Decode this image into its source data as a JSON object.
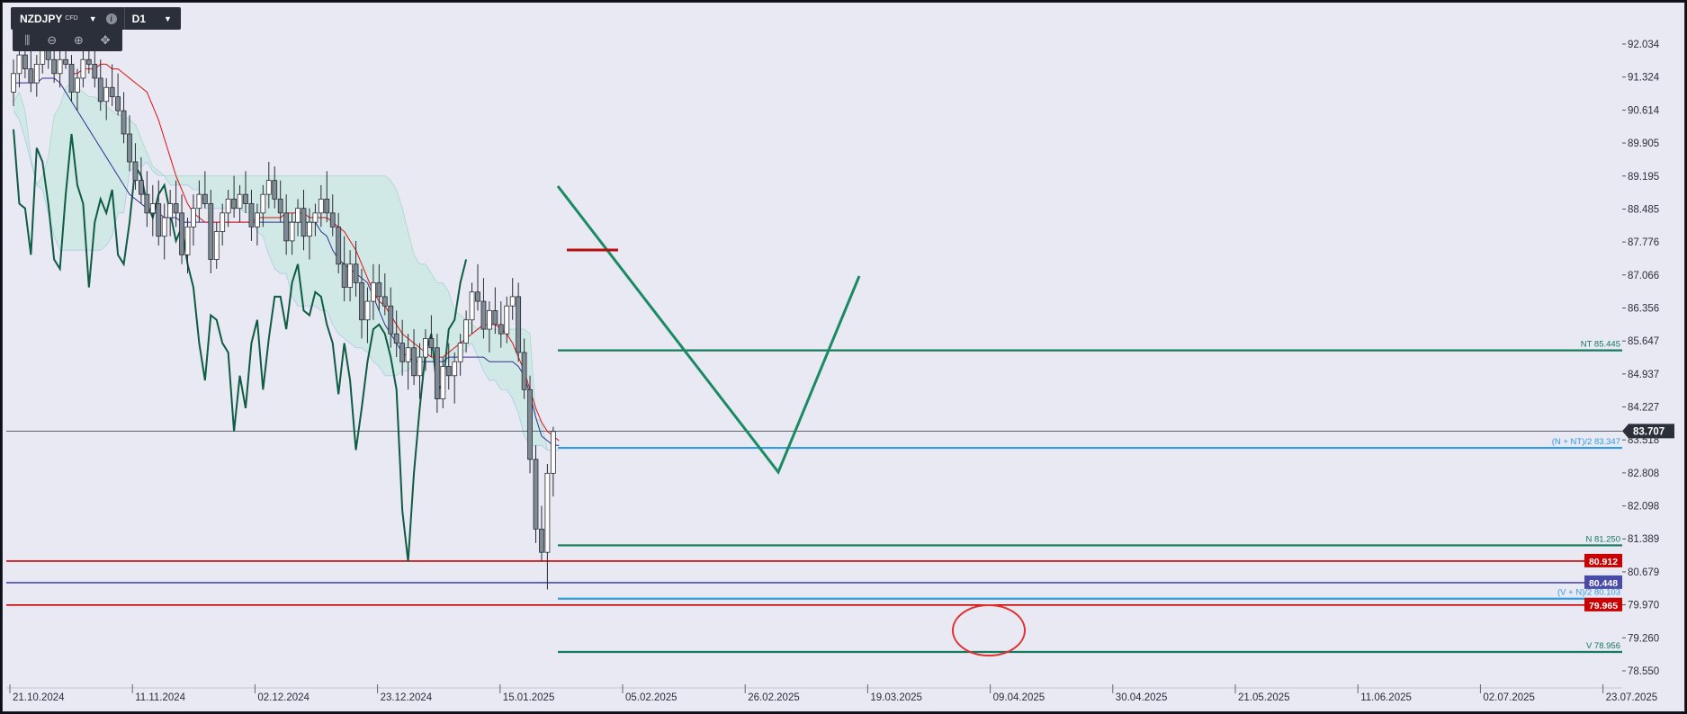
{
  "toolbar": {
    "symbol": "NZDJPY",
    "symbol_type": "CFD",
    "timeframe": "D1",
    "tools": [
      "bars-icon",
      "zoom-out-icon",
      "zoom-in-icon",
      "crosshair-icon"
    ]
  },
  "chart_data": {
    "type": "candlestick",
    "title": "NZDJPY",
    "ylim": [
      78.2,
      92.6
    ],
    "y_ticks": [
      92.034,
      91.324,
      90.614,
      89.905,
      89.195,
      88.485,
      87.776,
      87.066,
      86.356,
      85.647,
      84.937,
      84.227,
      83.518,
      82.808,
      82.098,
      81.389,
      80.679,
      79.97,
      79.26,
      78.55
    ],
    "y_tick_labels": [
      "92.034",
      "91.324",
      "90.614",
      "89.905",
      "89.195",
      "88.485",
      "87.776",
      "87.066",
      "86.356",
      "85.647",
      "84.937",
      "84.227",
      "83.518",
      "82.808",
      "82.098",
      "81.389",
      "80.679",
      "79.970",
      "79.260",
      "78.550"
    ],
    "x_tick_labels": [
      "21.10.2024",
      "11.11.2024",
      "02.12.2024",
      "23.12.2024",
      "15.01.2025",
      "05.02.2025",
      "26.02.2025",
      "19.03.2025",
      "09.04.2025",
      "30.04.2025",
      "21.05.2025",
      "11.06.2025",
      "02.07.2025",
      "23.07.2025"
    ],
    "current_price": "83.707",
    "candles": [
      [
        91.0,
        91.7,
        90.7,
        91.4
      ],
      [
        91.4,
        92.0,
        91.1,
        91.8
      ],
      [
        91.8,
        92.2,
        91.3,
        91.5
      ],
      [
        91.5,
        91.9,
        91.0,
        91.2
      ],
      [
        91.2,
        91.8,
        90.9,
        91.6
      ],
      [
        91.6,
        92.1,
        91.4,
        91.9
      ],
      [
        91.9,
        92.3,
        91.5,
        91.7
      ],
      [
        91.7,
        92.0,
        91.2,
        91.4
      ],
      [
        91.4,
        91.9,
        91.1,
        91.7
      ],
      [
        91.7,
        92.2,
        91.5,
        91.6
      ],
      [
        91.6,
        91.8,
        90.8,
        91.0
      ],
      [
        91.0,
        91.5,
        90.6,
        91.3
      ],
      [
        91.3,
        91.9,
        91.1,
        91.7
      ],
      [
        91.7,
        92.1,
        91.4,
        91.6
      ],
      [
        91.6,
        91.9,
        91.1,
        91.3
      ],
      [
        91.3,
        91.7,
        90.6,
        90.8
      ],
      [
        90.8,
        91.3,
        90.4,
        91.1
      ],
      [
        91.1,
        91.6,
        90.7,
        90.9
      ],
      [
        90.9,
        91.4,
        90.5,
        90.6
      ],
      [
        90.6,
        91.0,
        89.9,
        90.1
      ],
      [
        90.1,
        90.5,
        89.3,
        89.5
      ],
      [
        89.5,
        89.9,
        88.9,
        89.1
      ],
      [
        89.1,
        89.6,
        88.6,
        88.8
      ],
      [
        88.8,
        89.3,
        88.1,
        88.4
      ],
      [
        88.4,
        89.0,
        87.9,
        88.6
      ],
      [
        88.6,
        89.1,
        87.7,
        87.9
      ],
      [
        87.9,
        88.6,
        87.4,
        88.3
      ],
      [
        88.3,
        88.9,
        87.9,
        88.6
      ],
      [
        88.6,
        89.1,
        88.1,
        88.4
      ],
      [
        88.4,
        88.8,
        87.3,
        87.5
      ],
      [
        87.5,
        88.3,
        87.1,
        88.1
      ],
      [
        88.1,
        88.8,
        87.7,
        88.5
      ],
      [
        88.5,
        89.1,
        88.2,
        88.8
      ],
      [
        88.8,
        89.3,
        88.5,
        88.6
      ],
      [
        88.6,
        88.9,
        87.1,
        87.4
      ],
      [
        87.4,
        88.2,
        87.2,
        88.0
      ],
      [
        88.0,
        88.6,
        87.7,
        88.4
      ],
      [
        88.4,
        88.9,
        88.1,
        88.7
      ],
      [
        88.7,
        89.2,
        88.3,
        88.5
      ],
      [
        88.5,
        89.0,
        88.2,
        88.8
      ],
      [
        88.8,
        89.3,
        88.4,
        88.6
      ],
      [
        88.6,
        88.9,
        87.8,
        88.1
      ],
      [
        88.1,
        88.6,
        87.7,
        88.4
      ],
      [
        88.4,
        89.0,
        88.1,
        88.8
      ],
      [
        88.8,
        89.5,
        88.5,
        89.1
      ],
      [
        89.1,
        89.4,
        88.5,
        88.7
      ],
      [
        88.7,
        89.1,
        88.2,
        88.4
      ],
      [
        88.4,
        88.8,
        87.5,
        87.8
      ],
      [
        87.8,
        88.4,
        87.5,
        88.2
      ],
      [
        88.2,
        88.7,
        87.9,
        88.5
      ],
      [
        88.5,
        88.9,
        87.6,
        87.9
      ],
      [
        87.9,
        88.5,
        87.4,
        88.2
      ],
      [
        88.2,
        88.6,
        87.9,
        88.4
      ],
      [
        88.4,
        89.0,
        88.1,
        88.7
      ],
      [
        88.7,
        89.3,
        88.2,
        88.4
      ],
      [
        88.4,
        88.8,
        87.9,
        88.1
      ],
      [
        88.1,
        88.4,
        87.1,
        87.3
      ],
      [
        87.3,
        87.9,
        86.5,
        86.8
      ],
      [
        86.8,
        87.6,
        86.5,
        87.3
      ],
      [
        87.3,
        87.8,
        86.6,
        86.9
      ],
      [
        86.9,
        87.2,
        85.7,
        86.1
      ],
      [
        86.1,
        86.8,
        85.6,
        86.5
      ],
      [
        86.5,
        87.3,
        86.1,
        86.9
      ],
      [
        86.9,
        87.3,
        86.3,
        86.6
      ],
      [
        86.6,
        87.1,
        86.2,
        86.4
      ],
      [
        86.4,
        86.8,
        85.5,
        85.8
      ],
      [
        85.8,
        86.3,
        85.3,
        85.6
      ],
      [
        85.6,
        86.1,
        84.9,
        85.2
      ],
      [
        85.2,
        85.8,
        84.6,
        85.5
      ],
      [
        85.5,
        85.9,
        84.7,
        84.9
      ],
      [
        84.9,
        85.6,
        84.4,
        85.3
      ],
      [
        85.3,
        85.9,
        85.0,
        85.7
      ],
      [
        85.7,
        86.2,
        85.3,
        85.5
      ],
      [
        85.5,
        85.8,
        84.1,
        84.4
      ],
      [
        84.4,
        85.3,
        84.2,
        85.1
      ],
      [
        85.1,
        85.6,
        84.6,
        84.9
      ],
      [
        84.9,
        85.4,
        84.3,
        85.2
      ],
      [
        85.2,
        85.8,
        84.9,
        85.6
      ],
      [
        85.6,
        86.3,
        85.4,
        86.1
      ],
      [
        86.1,
        86.9,
        85.8,
        86.7
      ],
      [
        86.7,
        87.3,
        86.3,
        86.5
      ],
      [
        86.5,
        87.0,
        85.7,
        85.9
      ],
      [
        85.9,
        86.5,
        85.4,
        86.3
      ],
      [
        86.3,
        86.8,
        85.8,
        86.0
      ],
      [
        86.0,
        86.5,
        85.5,
        85.8
      ],
      [
        85.8,
        86.6,
        85.6,
        86.4
      ],
      [
        86.4,
        87.0,
        86.1,
        86.6
      ],
      [
        86.6,
        86.9,
        85.2,
        85.4
      ],
      [
        85.4,
        85.7,
        84.4,
        84.6
      ],
      [
        84.6,
        84.9,
        82.8,
        83.1
      ],
      [
        83.1,
        83.4,
        81.3,
        81.6
      ],
      [
        81.6,
        82.1,
        80.9,
        81.1
      ],
      [
        81.1,
        83.0,
        80.3,
        82.8
      ],
      [
        82.8,
        83.8,
        82.3,
        83.7
      ]
    ],
    "kijun": [
      91.2,
      91.2,
      91.2,
      91.2,
      91.2,
      91.3,
      91.3,
      91.3,
      91.2,
      91.0,
      90.8,
      90.6,
      90.4,
      90.2,
      90.0,
      89.8,
      89.6,
      89.4,
      89.2,
      89.0,
      88.8,
      88.7,
      88.6,
      88.5,
      88.4,
      88.4,
      88.3,
      88.3,
      88.3,
      88.2,
      88.2,
      88.2,
      88.2,
      88.2,
      88.2,
      88.2,
      88.2,
      88.2,
      88.2,
      88.2,
      88.2,
      88.2,
      88.2,
      88.2,
      88.2,
      88.2,
      88.2,
      88.2,
      88.2,
      88.2,
      88.2,
      88.2,
      88.2,
      88.0,
      87.9,
      87.6,
      87.4,
      87.3,
      87.2,
      87.1,
      87.0,
      86.9,
      86.6,
      86.3,
      86.0,
      85.8,
      85.6,
      85.4,
      85.3,
      85.2,
      85.2,
      85.2,
      85.2,
      85.2,
      85.2,
      85.3,
      85.3,
      85.3,
      85.3,
      85.3,
      85.3,
      85.3,
      85.2,
      85.2,
      85.2,
      85.2,
      85.2,
      85.1,
      84.9,
      84.5,
      84.0,
      83.6,
      83.5,
      83.4,
      83.4
    ],
    "tenkan": [
      91.4,
      91.4,
      91.5,
      91.5,
      91.5,
      91.6,
      91.6,
      91.5,
      91.5,
      91.4,
      91.3,
      91.2,
      91.1,
      91.0,
      90.7,
      90.4,
      90.0,
      89.6,
      89.2,
      88.9,
      88.6,
      88.4,
      88.3,
      88.2,
      88.2,
      88.2,
      88.2,
      88.2,
      88.2,
      88.2,
      88.2,
      88.2,
      88.3,
      88.3,
      88.3,
      88.3,
      88.3,
      88.4,
      88.4,
      88.4,
      88.4,
      88.3,
      88.3,
      88.3,
      88.3,
      88.2,
      88.1,
      88.0,
      87.8,
      87.6,
      87.3,
      87.0,
      86.7,
      86.5,
      86.4,
      86.2,
      86.0,
      85.8,
      85.7,
      85.6,
      85.5,
      85.4,
      85.3,
      85.3,
      85.3,
      85.4,
      85.5,
      85.6,
      85.7,
      85.8,
      85.9,
      86.0,
      86.0,
      86.0,
      85.9,
      85.8,
      85.6,
      85.3,
      85.0,
      84.6,
      84.2,
      83.9,
      83.7,
      83.6,
      83.5
    ],
    "chikou": [
      90.2,
      88.6,
      88.5,
      87.5,
      89.8,
      89.5,
      88.6,
      87.4,
      87.2,
      88.8,
      90.1,
      89.0,
      88.6,
      86.8,
      88.2,
      88.7,
      88.4,
      88.9,
      87.5,
      87.3,
      88.2,
      89.4,
      89.2,
      88.6,
      88.3,
      88.8,
      89.0,
      88.4,
      87.8,
      88.1,
      87.3,
      86.8,
      85.6,
      84.8,
      86.2,
      86.1,
      85.6,
      85.4,
      83.7,
      84.9,
      84.2,
      85.6,
      86.1,
      84.6,
      85.7,
      86.6,
      86.6,
      85.9,
      86.9,
      87.3,
      86.3,
      86.2,
      86.7,
      86.6,
      86.0,
      85.6,
      84.5,
      85.6,
      84.8,
      83.3,
      84.2,
      85.2,
      85.9,
      86.0,
      85.8,
      85.3,
      84.6,
      82.0,
      80.9,
      82.8,
      84.2,
      85.4,
      85.8,
      84.6,
      84.7,
      85.9,
      86.1,
      86.9,
      87.4
    ],
    "cloud_upper": [
      90.8,
      91.0,
      90.6,
      89.6,
      89.0,
      89.2,
      89.6,
      90.5,
      90.7,
      91.1,
      91.2,
      91.1,
      91.0,
      90.9,
      90.9,
      90.8,
      90.7,
      90.6,
      90.5,
      90.5,
      90.4,
      90.3,
      90.0,
      89.7,
      89.4,
      89.3,
      89.2,
      89.2,
      89.2,
      89.2,
      89.2,
      89.2,
      89.2,
      89.2,
      89.2,
      89.2,
      89.2,
      89.2,
      89.2,
      89.2,
      89.2,
      89.2,
      89.2,
      89.2,
      89.2,
      89.2,
      89.2,
      89.2,
      89.2,
      89.2,
      89.2,
      89.2,
      89.2,
      89.2,
      89.2,
      89.2,
      89.2,
      89.2,
      89.2,
      89.2,
      89.2,
      89.2,
      89.2,
      89.2,
      89.2,
      89.1,
      88.9,
      88.5,
      88.0,
      87.5,
      87.3,
      87.3,
      87.1,
      86.9,
      86.9,
      86.7,
      86.3,
      86.2,
      86.1,
      86.0,
      85.9,
      85.9,
      85.9,
      85.9,
      85.9,
      85.9,
      85.9,
      85.9,
      85.9,
      85.8,
      84.0,
      83.9,
      83.3,
      83.3,
      83.3
    ],
    "cloud_lower": [
      90.6,
      90.4,
      90.0,
      89.5,
      89.0,
      88.9,
      88.4,
      87.9,
      87.6,
      87.6,
      87.6,
      87.6,
      87.6,
      87.6,
      87.6,
      87.6,
      87.7,
      87.9,
      88.4,
      88.4,
      89.3,
      89.4,
      89.4,
      89.5,
      89.3,
      89.2,
      89.2,
      89.0,
      89.0,
      89.0,
      89.0,
      88.9,
      88.9,
      88.5,
      88.5,
      88.5,
      88.5,
      88.5,
      88.5,
      88.5,
      88.4,
      88.4,
      88.0,
      87.9,
      87.5,
      87.2,
      87.1,
      87.1,
      86.6,
      86.4,
      86.4,
      86.4,
      86.4,
      86.3,
      86.3,
      86.0,
      85.8,
      85.7,
      85.6,
      85.5,
      85.5,
      85.4,
      85.2,
      85.1,
      84.9,
      84.9,
      84.9,
      85.0,
      85.0,
      85.2,
      85.2,
      85.2,
      85.2,
      85.2,
      85.2,
      85.2,
      85.3,
      85.3,
      85.5,
      85.6,
      85.3,
      85.0,
      84.8,
      84.8,
      84.6,
      84.6,
      84.4,
      84.1,
      83.6,
      83.4,
      83.4,
      83.4,
      83.3,
      83.3,
      83.3
    ],
    "horizontal_levels": [
      {
        "name": "NT",
        "label": "NT 85.445",
        "value": 85.445,
        "color": "#137a5a"
      },
      {
        "name": "(N + NT)/2",
        "label": "(N + NT)/2 83.347",
        "value": 83.347,
        "color": "#2f9be0"
      },
      {
        "name": "N",
        "label": "N 81.250",
        "value": 81.25,
        "color": "#137a5a"
      },
      {
        "name": "level",
        "label": "80.912",
        "value": 80.912,
        "color": "#cc0000"
      },
      {
        "name": "level",
        "label": "80.448",
        "value": 80.448,
        "color": "#4a4aa8"
      },
      {
        "name": "(V + N)/2",
        "label": "(V + N)/2 80.103",
        "value": 80.103,
        "color": "#2f9be0"
      },
      {
        "name": "level",
        "label": "79.965",
        "value": 79.965,
        "color": "#cc0000"
      },
      {
        "name": "V",
        "label": "V 78.956",
        "value": 78.956,
        "color": "#137a5a"
      }
    ],
    "current_price_color": "#2b2f3a",
    "colors": {
      "background": "#e9e9f4",
      "bull_candle": "#ffffff",
      "bear_candle": "#7e8a94",
      "tenkan": "#e01010",
      "kijun": "#303090",
      "chikou": "#0e5c42",
      "cloud_bull": "#c8e8e2",
      "cloud_bear": "#cfe1f6",
      "wave": "#1a8a62"
    }
  }
}
